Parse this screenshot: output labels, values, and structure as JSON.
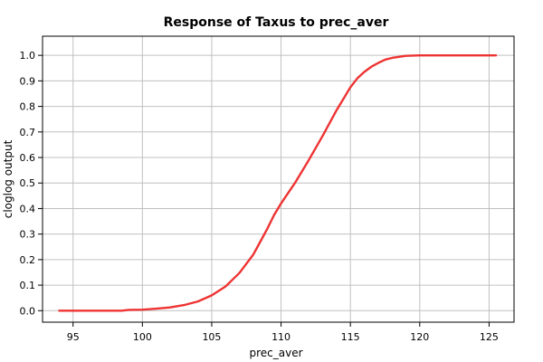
{
  "chart_data": {
    "type": "line",
    "title": "Response of Taxus to prec_aver",
    "xlabel": "prec_aver",
    "ylabel": "cloglog output",
    "xlim": [
      92.8,
      126.8
    ],
    "ylim": [
      -0.045,
      1.075
    ],
    "x_ticks": [
      95,
      100,
      105,
      110,
      115,
      120,
      125
    ],
    "y_ticks": [
      0.0,
      0.1,
      0.2,
      0.3,
      0.4,
      0.5,
      0.6,
      0.7,
      0.8,
      0.9,
      1.0
    ],
    "x_tick_labels": [
      "95",
      "100",
      "105",
      "110",
      "115",
      "120",
      "125"
    ],
    "y_tick_labels": [
      "0.0",
      "0.1",
      "0.2",
      "0.3",
      "0.4",
      "0.5",
      "0.6",
      "0.7",
      "0.8",
      "0.9",
      "1.0"
    ],
    "grid": true,
    "line_color": "#ee3333",
    "grid_color": "#c0c0c0",
    "series": [
      {
        "x": [
          94,
          96,
          98.5,
          99,
          100,
          101,
          102,
          103,
          104,
          105,
          106,
          107,
          108,
          108.5,
          109,
          109.5,
          110,
          111,
          112,
          113,
          114,
          115,
          115.5,
          116,
          116.5,
          117,
          117.5,
          118,
          119,
          120,
          122,
          125.5
        ],
        "values": [
          0.0,
          0.0,
          0.0,
          0.003,
          0.004,
          0.008,
          0.013,
          0.022,
          0.036,
          0.06,
          0.095,
          0.148,
          0.22,
          0.27,
          0.32,
          0.375,
          0.42,
          0.5,
          0.59,
          0.685,
          0.785,
          0.875,
          0.91,
          0.935,
          0.955,
          0.97,
          0.983,
          0.99,
          0.998,
          1.0,
          1.0,
          1.0
        ]
      }
    ]
  }
}
